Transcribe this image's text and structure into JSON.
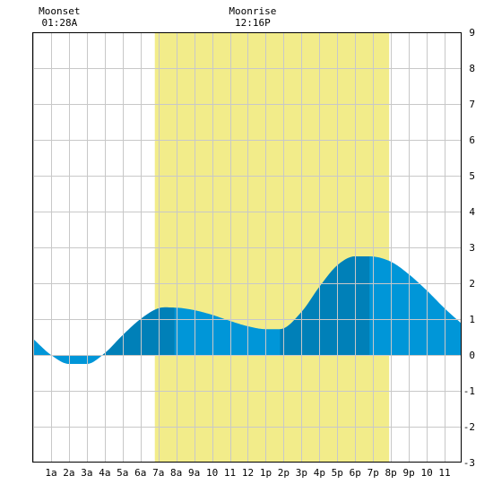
{
  "chart_data": {
    "type": "area",
    "title": "",
    "xlabel": "",
    "ylabel": "",
    "x_unit": "hour of day",
    "xlim": [
      -0.05,
      23.95
    ],
    "ylim": [
      -3,
      9
    ],
    "grid": true,
    "legend": "none",
    "x_tick_labels": [
      "1a",
      "2a",
      "3a",
      "4a",
      "5a",
      "6a",
      "7a",
      "8a",
      "9a",
      "10",
      "11",
      "12",
      "1p",
      "2p",
      "3p",
      "4p",
      "5p",
      "6p",
      "7p",
      "8p",
      "9p",
      "10",
      "11"
    ],
    "y_ticks": [
      -3,
      -2,
      -1,
      0,
      1,
      2,
      3,
      4,
      5,
      6,
      7,
      8,
      9
    ],
    "daylight": {
      "start_hour": 6.8,
      "end_hour": 19.9
    },
    "annotations": [
      {
        "event": "Moonset",
        "time": "01:28A",
        "hour": 1.47
      },
      {
        "event": "Moonrise",
        "time": "12:16P",
        "hour": 12.27
      }
    ],
    "tide": {
      "x": [
        0,
        1,
        2,
        3,
        4,
        5,
        6,
        7,
        7.9,
        9,
        10,
        11,
        12,
        13,
        13.8,
        15,
        16,
        17,
        18,
        18.8,
        20,
        21,
        22,
        23,
        24
      ],
      "y": [
        0.45,
        0.0,
        -0.25,
        -0.25,
        0.05,
        0.55,
        1.0,
        1.3,
        1.32,
        1.25,
        1.12,
        0.95,
        0.8,
        0.72,
        0.72,
        1.2,
        1.9,
        2.5,
        2.75,
        2.75,
        2.6,
        2.25,
        1.8,
        1.3,
        0.85
      ]
    },
    "dark_shading_intervals": [
      [
        3.9,
        7.9
      ],
      [
        13.8,
        18.8
      ]
    ],
    "colors": {
      "tide": "#0096d8",
      "tide_dark": "#0080b8",
      "daylight": "#f2ec8a",
      "grid": "#c8c8c8",
      "frame": "#000000"
    }
  }
}
